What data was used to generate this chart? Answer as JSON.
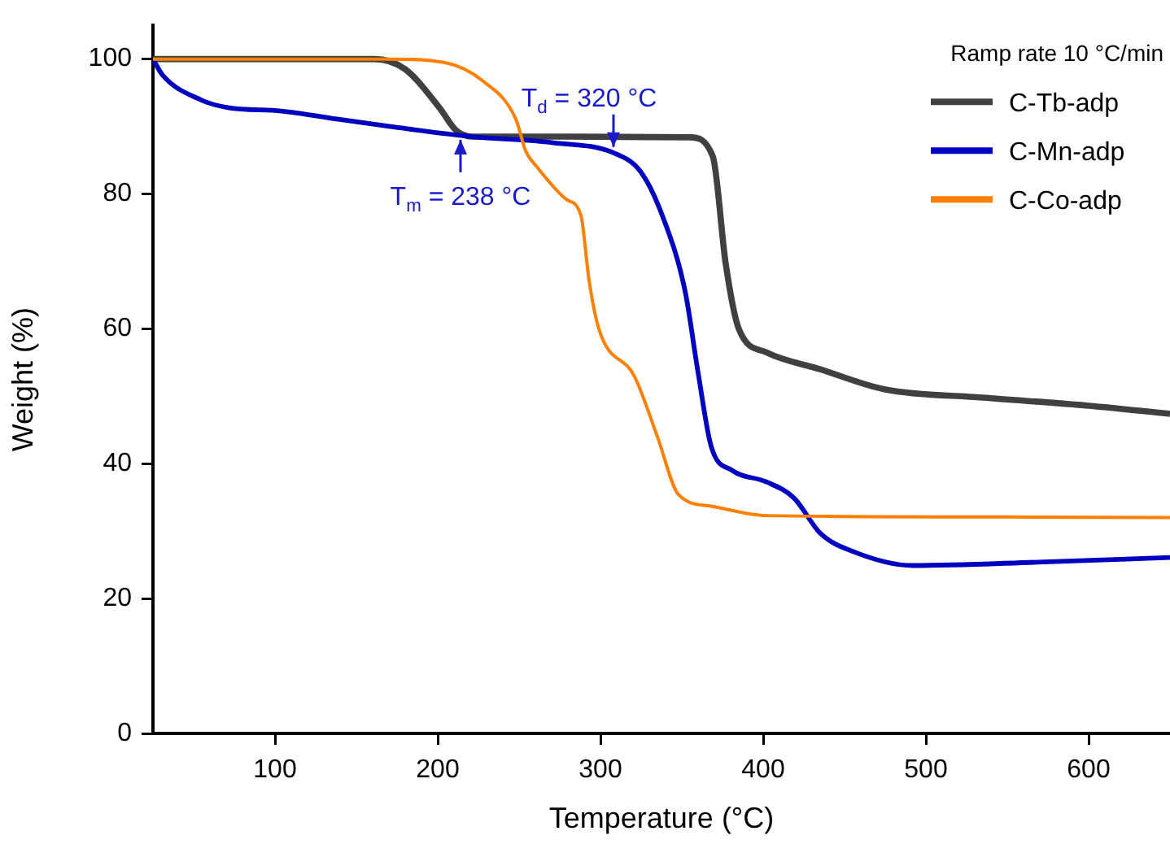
{
  "chart_data": {
    "type": "line",
    "xlabel": "Temperature (°C)",
    "ylabel": "Weight (%)",
    "legend_title": "Ramp rate 10 °C/min",
    "legend": "top right",
    "grid": false,
    "marker": "none",
    "line_style": "solid",
    "xlim": [
      25,
      650
    ],
    "xticks": [
      100,
      200,
      300,
      400,
      500,
      600
    ],
    "ylim": [
      0,
      105
    ],
    "yticks": [
      0,
      20,
      40,
      60,
      80,
      100
    ],
    "series": [
      {
        "name": "C-Tb-adp",
        "color": "#404040",
        "x": [
          25,
          100,
          161,
          180,
          201,
          211,
          221,
          280,
          355,
          369,
          377,
          385,
          402,
          435,
          475,
          535,
          600,
          650
        ],
        "values": [
          100,
          100,
          100,
          98.5,
          92.8,
          89.5,
          88.5,
          88.5,
          88.4,
          85.6,
          69.6,
          60,
          56.5,
          54,
          51,
          49.8,
          48.6,
          47.4
        ]
      },
      {
        "name": "C-Mn-adp",
        "color": "#0000c0",
        "x": [
          25,
          31,
          54,
          71,
          104,
          138,
          171,
          221,
          271,
          308,
          325,
          338,
          352,
          360,
          368,
          381,
          402,
          419,
          435,
          455,
          492,
          569,
          650
        ],
        "values": [
          100,
          97.6,
          94,
          92.8,
          92.3,
          91.1,
          90,
          88.5,
          87.6,
          86.1,
          83.2,
          76.8,
          65.6,
          53.5,
          42.6,
          39,
          37.3,
          34.9,
          29.7,
          27,
          24.9,
          25.4,
          26.1
        ]
      },
      {
        "name": "C-Co-adp",
        "color": "#ff8000",
        "x": [
          25,
          100,
          171,
          204,
          228,
          248,
          254,
          261,
          279,
          288,
          293,
          299,
          321,
          335,
          348,
          368,
          402,
          535,
          650
        ],
        "values": [
          100,
          100,
          100,
          99.5,
          96.7,
          91.1,
          86.4,
          84,
          79.2,
          76.8,
          67.2,
          60,
          52.9,
          44,
          35.4,
          33.7,
          32.3,
          32.1,
          32
        ]
      }
    ],
    "annotations": [
      {
        "text": "T$_{m}$ = 238 °C",
        "x": 214,
        "y": 89
      },
      {
        "text": "T$_{d}$ = 320 °C",
        "x": 308,
        "y": 86
      }
    ]
  }
}
